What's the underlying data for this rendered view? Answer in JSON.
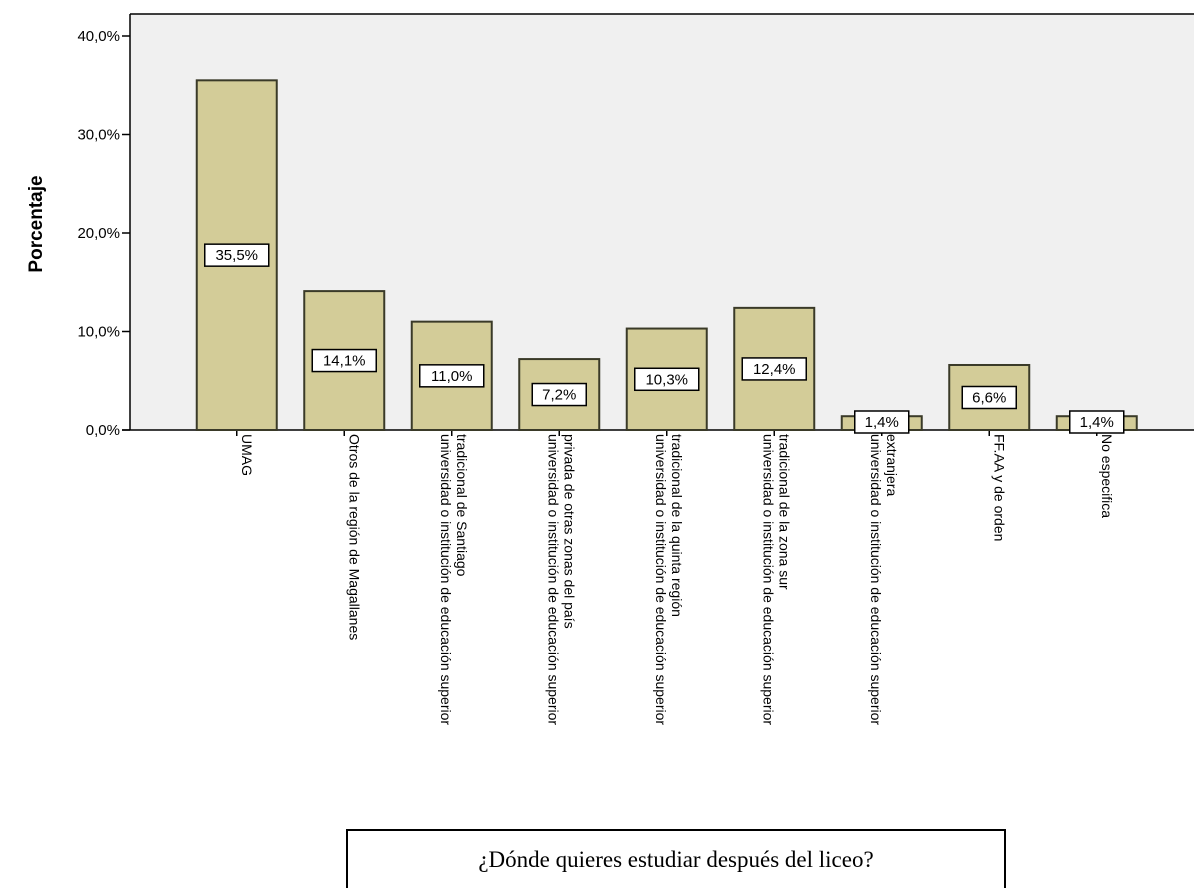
{
  "chart_data": {
    "type": "bar",
    "title": "¿Dónde quieres estudiar después del liceo?",
    "xlabel": "",
    "ylabel": "Porcentaje",
    "ylim": [
      0,
      40
    ],
    "yticks": [
      "0,0%",
      "10,0%",
      "20,0%",
      "30,0%",
      "40,0%"
    ],
    "grid": false,
    "legend": "none",
    "categories": [
      [
        "UMAG"
      ],
      [
        "Otros de la región de Magallanes"
      ],
      [
        "universidad o institución de educación superior",
        "tradicional de Santiago"
      ],
      [
        "universidad o institución de educación superior",
        "privada de otras zonas del país"
      ],
      [
        "universidad o institución de educación superior",
        "tradicional de la quinta región"
      ],
      [
        "universidad o institución de educación superior",
        "tradicional de la zona sur"
      ],
      [
        "universidad o institución de educación superior",
        "extranjera"
      ],
      [
        "FF.AA y de orden"
      ],
      [
        "No especifica"
      ]
    ],
    "values": [
      35.5,
      14.1,
      11.0,
      7.2,
      10.3,
      12.4,
      1.4,
      6.6,
      1.4
    ],
    "value_labels": [
      "35,5%",
      "14,1%",
      "11,0%",
      "7,2%",
      "10,3%",
      "12,4%",
      "1,4%",
      "6,6%",
      "1,4%"
    ],
    "colors": {
      "bar": "#d3cc98",
      "bar_stroke": "#3a3a28",
      "plot_bg": "#f0f0f0"
    }
  }
}
